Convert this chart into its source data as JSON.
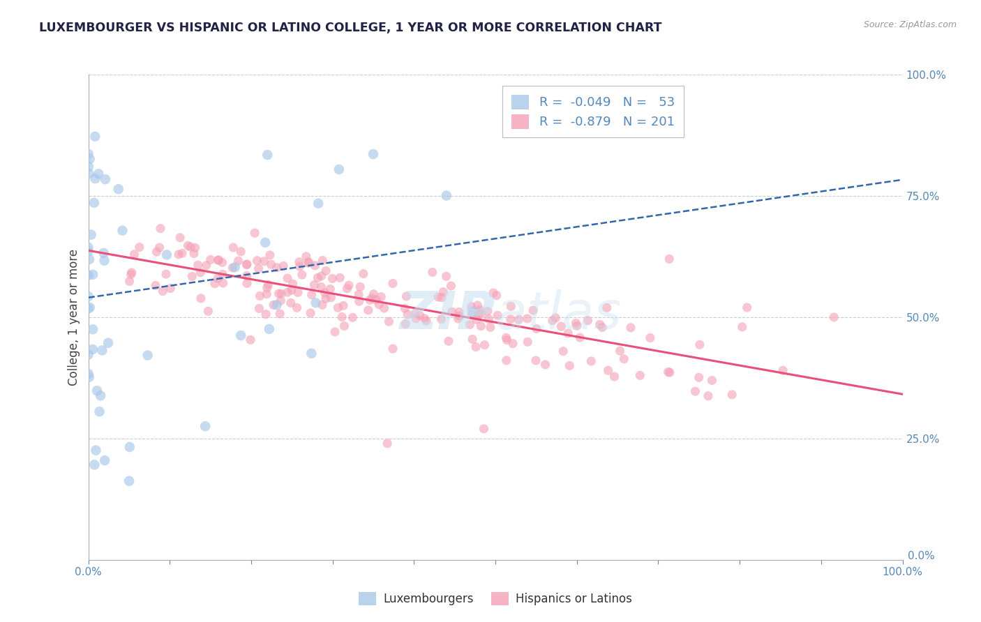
{
  "title": "LUXEMBOURGER VS HISPANIC OR LATINO COLLEGE, 1 YEAR OR MORE CORRELATION CHART",
  "source_text": "Source: ZipAtlas.com",
  "ylabel": "College, 1 year or more",
  "legend_labels": [
    "Luxembourgers",
    "Hispanics or Latinos"
  ],
  "r_values": [
    -0.049,
    -0.879
  ],
  "n_values": [
    53,
    201
  ],
  "blue_color": "#a8c8e8",
  "pink_color": "#f4a0b5",
  "blue_line_color": "#3366aa",
  "pink_line_color": "#e8507a",
  "xlim": [
    0,
    1
  ],
  "ylim": [
    0,
    1
  ],
  "tick_color": "#5588bb",
  "grid_color": "#cccccc",
  "background_color": "#ffffff",
  "title_color": "#222244",
  "watermark_color": "#c8ddf0"
}
